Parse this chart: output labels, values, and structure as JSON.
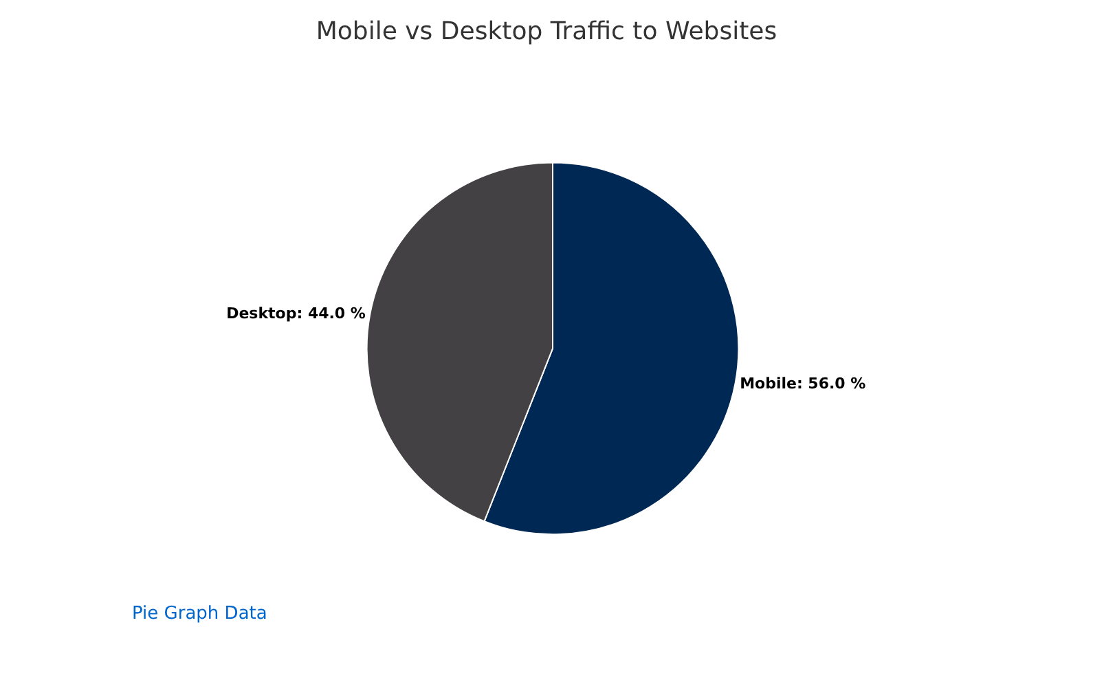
{
  "chart_data": {
    "type": "pie",
    "title": "Mobile vs Desktop Traffic to Websites",
    "categories": [
      "Mobile",
      "Desktop"
    ],
    "values": [
      56.0,
      44.0
    ],
    "colors": [
      "#002855",
      "#434144"
    ],
    "value_labels": [
      "56.0 %",
      "44.0 %"
    ],
    "legend": false,
    "annotations": [
      "Pie Graph Data"
    ]
  }
}
